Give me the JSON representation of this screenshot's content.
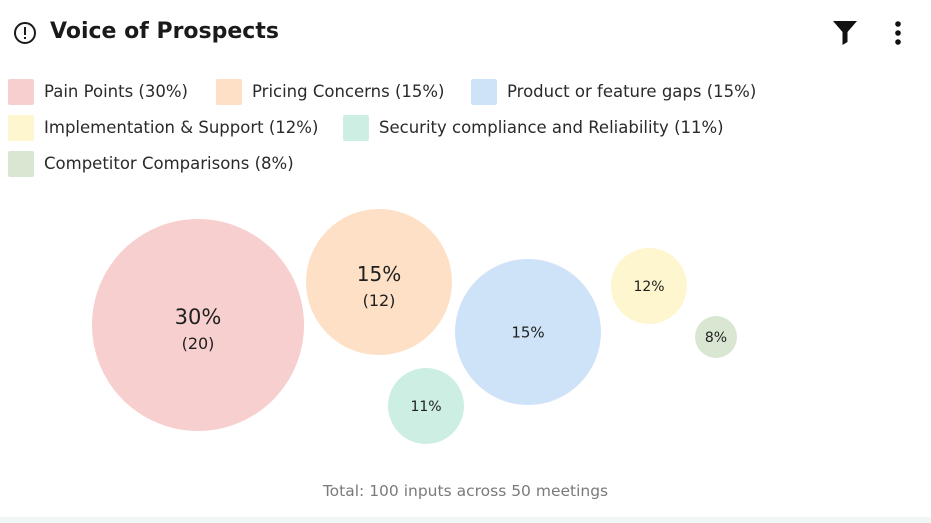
{
  "header": {
    "title": "Voice of Prospects",
    "icons": {
      "info": "info-circle-icon",
      "filter": "filter-icon",
      "more": "more-vertical-icon"
    }
  },
  "chart_data": {
    "type": "bubble",
    "title": "",
    "legend_placement": "top",
    "series": [
      {
        "name": "Pain Points (30%)",
        "percent": 30,
        "count": 20,
        "label": "30%",
        "sub_label": "(20)",
        "color": "#f8cfcf"
      },
      {
        "name": "Pricing Concerns (15%)",
        "percent": 15,
        "count": 12,
        "label": "15%",
        "sub_label": "(12)",
        "color": "#fde0c6"
      },
      {
        "name": "Product or feature gaps (15%)",
        "percent": 15,
        "label": "15%",
        "color": "#cfe3f8"
      },
      {
        "name": "Implementation & Support (12%)",
        "percent": 12,
        "label": "12%",
        "color": "#fdf6cf"
      },
      {
        "name": "Security compliance and Reliability (11%)",
        "percent": 11,
        "label": "11%",
        "color": "#cdeee3"
      },
      {
        "name": "Competitor Comparisons (8%)",
        "percent": 8,
        "label": "8%",
        "color": "#d9e6d2"
      }
    ]
  },
  "footer": {
    "total_text": "Total: 100 inputs across 50 meetings"
  }
}
